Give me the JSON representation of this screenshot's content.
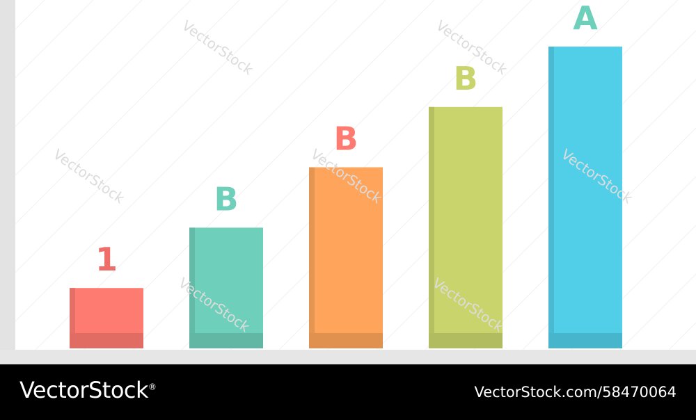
{
  "chart_data": {
    "type": "bar",
    "categories": [
      "1",
      "B",
      "B",
      "B",
      "A"
    ],
    "values": [
      1,
      2,
      3,
      4,
      5
    ],
    "title": "",
    "xlabel": "",
    "ylabel": "",
    "ylim": [
      0,
      5
    ],
    "grid": false,
    "colors": [
      "#fe7b72",
      "#6ecfba",
      "#fea55b",
      "#c9d56c",
      "#51cfe8"
    ],
    "label_colors": [
      "#ef6e6a",
      "#6ecfba",
      "#fe7b72",
      "#c9d56c",
      "#6ecfba"
    ]
  },
  "watermark": "VectorStock",
  "footer": {
    "brand": "VectorStock",
    "brand_mark": "®",
    "image_id": "VectorStock.com/58470064"
  }
}
